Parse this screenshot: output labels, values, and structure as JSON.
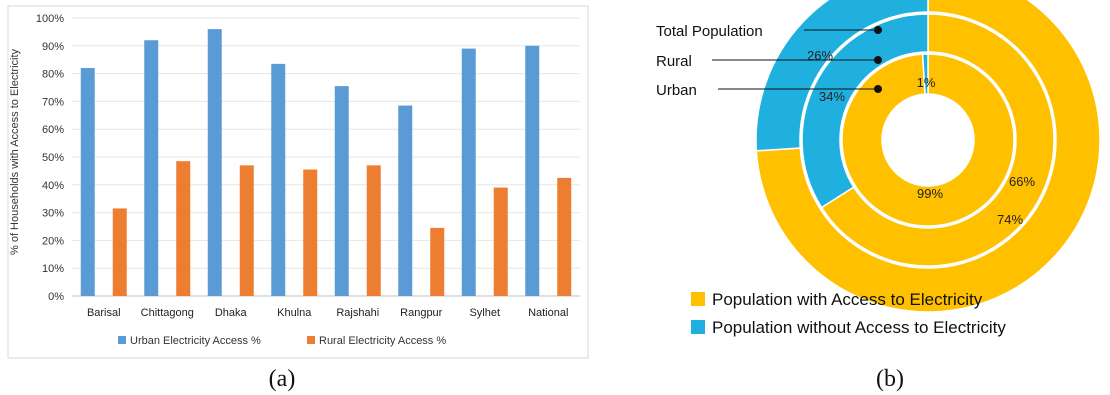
{
  "chart_data": [
    {
      "type": "bar",
      "ylabel": "% of Households with Access to Electricity",
      "ylim": [
        0,
        100
      ],
      "yticks": [
        "0%",
        "10%",
        "20%",
        "30%",
        "40%",
        "50%",
        "60%",
        "70%",
        "80%",
        "90%",
        "100%"
      ],
      "grid": true,
      "legend_position": "bottom",
      "categories": [
        "Barisal",
        "Chittagong",
        "Dhaka",
        "Khulna",
        "Rajshahi",
        "Rangpur",
        "Sylhet",
        "National"
      ],
      "series": [
        {
          "name": "Urban Electricity Access %",
          "color": "#5b9bd5",
          "values": [
            82,
            92,
            96,
            83.5,
            75.5,
            68.5,
            89,
            90
          ]
        },
        {
          "name": "Rural Electricity Access %",
          "color": "#ed7d31",
          "values": [
            31.5,
            48.5,
            47,
            45.5,
            47,
            24.5,
            39,
            42.5
          ]
        }
      ],
      "caption": "(a)"
    },
    {
      "type": "pie",
      "subtype": "nested-donut",
      "colors": {
        "with_access": "#ffc000",
        "without_access": "#1fb0e0"
      },
      "rings": [
        {
          "name": "Total Population",
          "position": "outer",
          "with_access": 74,
          "without_access": 26,
          "labels": {
            "with_access": "74%",
            "without_access": "26%"
          }
        },
        {
          "name": "Rural",
          "position": "middle",
          "with_access": 66,
          "without_access": 34,
          "labels": {
            "with_access": "66%",
            "without_access": "34%"
          }
        },
        {
          "name": "Urban",
          "position": "inner",
          "with_access": 99,
          "without_access": 1,
          "labels": {
            "with_access": "99%",
            "without_access": "1%"
          }
        }
      ],
      "legend": [
        {
          "key": "with_access",
          "label": "Population with Access to Electricity"
        },
        {
          "key": "without_access",
          "label": "Population without Access to Electricity"
        }
      ],
      "caption": "(b)"
    }
  ]
}
